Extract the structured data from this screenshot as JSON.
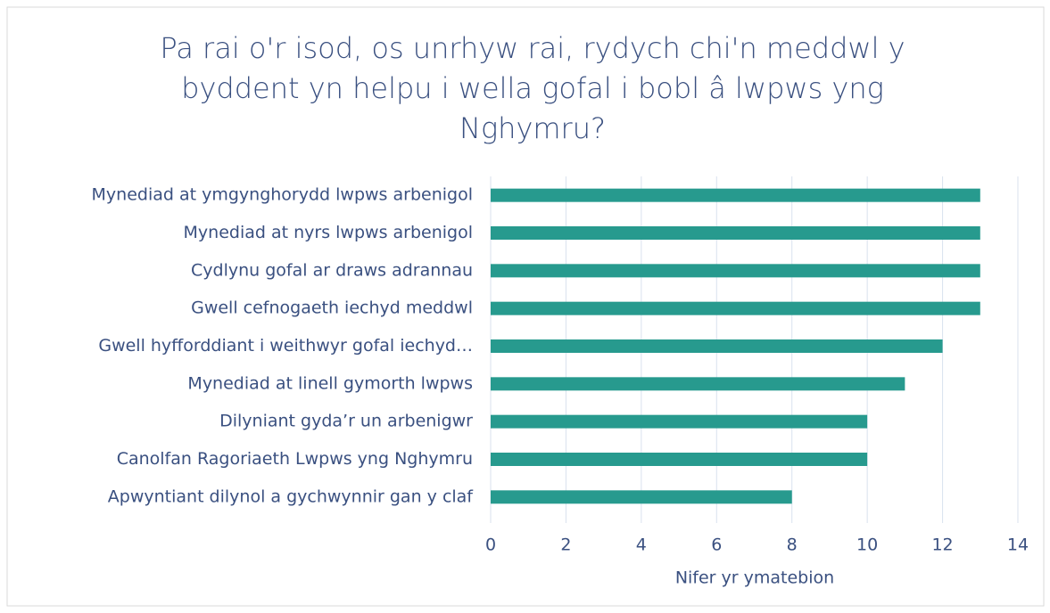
{
  "chart_data": {
    "type": "barh",
    "title": "Pa rai o'r isod, os unrhyw rai, rydych chi'n meddwl y byddent yn helpu i wella gofal i bobl â lwpws yng Nghymru?",
    "categories": [
      "Mynediad at ymgynghorydd lwpws arbenigol",
      "Mynediad at nyrs lwpws arbenigol",
      "Cydlynu gofal ar draws adrannau",
      "Gwell cefnogaeth iechyd meddwl",
      "Gwell hyfforddiant i weithwyr gofal iechyd…",
      "Mynediad at linell gymorth lwpws",
      "Dilyniant gyda’r un arbenigwr",
      "Canolfan Ragoriaeth Lwpws yng Nghymru",
      "Apwyntiant dilynol a gychwynnir gan y claf"
    ],
    "values": [
      13,
      13,
      13,
      13,
      12,
      11,
      10,
      10,
      8
    ],
    "color": "#279a8e",
    "xlabel": "Nifer yr ymatebion",
    "xlim": [
      0,
      14
    ],
    "xticks": [
      0,
      2,
      4,
      6,
      8,
      10,
      12,
      14
    ],
    "grid": true
  }
}
